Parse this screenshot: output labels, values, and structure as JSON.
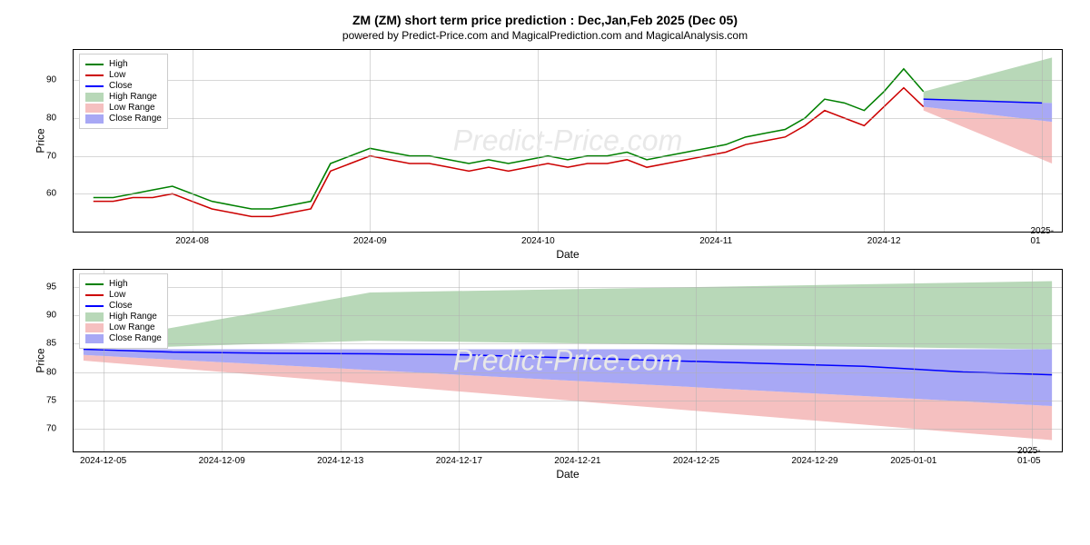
{
  "title": "ZM (ZM) short term price prediction : Dec,Jan,Feb 2025 (Dec 05)",
  "subtitle": "powered by Predict-Price.com and MagicalPrediction.com and MagicalAnalysis.com",
  "watermark": "Predict-Price.com",
  "chart1": {
    "type": "line_with_ranges",
    "ylabel": "Price",
    "xlabel": "Date",
    "ylim": [
      50,
      98
    ],
    "yticks": [
      60,
      70,
      80,
      90
    ],
    "xticks": [
      "2024-08",
      "2024-09",
      "2024-10",
      "2024-11",
      "2024-12",
      "2025-01"
    ],
    "xtick_positions": [
      0.12,
      0.3,
      0.47,
      0.65,
      0.82,
      0.98
    ],
    "grid_color": "#b0b0b0",
    "background_color": "#ffffff",
    "legend_items": [
      {
        "label": "High",
        "type": "line",
        "color": "#008000"
      },
      {
        "label": "Low",
        "type": "line",
        "color": "#cc0000"
      },
      {
        "label": "Close",
        "type": "line",
        "color": "#0000ff"
      },
      {
        "label": "High Range",
        "type": "patch",
        "color": "#b8d8b8"
      },
      {
        "label": "Low Range",
        "type": "patch",
        "color": "#f5c0c0"
      },
      {
        "label": "Close Range",
        "type": "patch",
        "color": "#a8a8f5"
      }
    ],
    "series_high": {
      "color": "#008000",
      "line_width": 1.5,
      "x": [
        0.02,
        0.04,
        0.06,
        0.08,
        0.1,
        0.12,
        0.14,
        0.16,
        0.18,
        0.2,
        0.22,
        0.24,
        0.26,
        0.28,
        0.3,
        0.32,
        0.34,
        0.36,
        0.38,
        0.4,
        0.42,
        0.44,
        0.46,
        0.48,
        0.5,
        0.52,
        0.54,
        0.56,
        0.58,
        0.6,
        0.62,
        0.64,
        0.66,
        0.68,
        0.7,
        0.72,
        0.74,
        0.76,
        0.78,
        0.8,
        0.82,
        0.84,
        0.86
      ],
      "y": [
        59,
        59,
        60,
        61,
        62,
        60,
        58,
        57,
        56,
        56,
        57,
        58,
        68,
        70,
        72,
        71,
        70,
        70,
        69,
        68,
        69,
        68,
        69,
        70,
        69,
        70,
        70,
        71,
        69,
        70,
        71,
        72,
        73,
        75,
        76,
        77,
        80,
        85,
        84,
        82,
        87,
        93,
        87
      ]
    },
    "series_low": {
      "color": "#cc0000",
      "line_width": 1.5,
      "x": [
        0.02,
        0.04,
        0.06,
        0.08,
        0.1,
        0.12,
        0.14,
        0.16,
        0.18,
        0.2,
        0.22,
        0.24,
        0.26,
        0.28,
        0.3,
        0.32,
        0.34,
        0.36,
        0.38,
        0.4,
        0.42,
        0.44,
        0.46,
        0.48,
        0.5,
        0.52,
        0.54,
        0.56,
        0.58,
        0.6,
        0.62,
        0.64,
        0.66,
        0.68,
        0.7,
        0.72,
        0.74,
        0.76,
        0.78,
        0.8,
        0.82,
        0.84,
        0.86
      ],
      "y": [
        58,
        58,
        59,
        59,
        60,
        58,
        56,
        55,
        54,
        54,
        55,
        56,
        66,
        68,
        70,
        69,
        68,
        68,
        67,
        66,
        67,
        66,
        67,
        68,
        67,
        68,
        68,
        69,
        67,
        68,
        69,
        70,
        71,
        73,
        74,
        75,
        78,
        82,
        80,
        78,
        83,
        88,
        83
      ]
    },
    "series_close": {
      "color": "#0000ff",
      "line_width": 1.5,
      "x": [
        0.86,
        0.98
      ],
      "y": [
        85,
        84
      ]
    },
    "range_high": {
      "color": "#b8d8b8",
      "x_start": 0.86,
      "x_end": 0.99,
      "top_start": 87,
      "top_end": 96,
      "bottom_start": 85,
      "bottom_end": 84
    },
    "range_close": {
      "color": "#a8a8f5",
      "x_start": 0.86,
      "x_end": 0.99,
      "top_start": 85,
      "top_end": 84,
      "bottom_start": 83,
      "bottom_end": 79
    },
    "range_low": {
      "color": "#f5c0c0",
      "x_start": 0.86,
      "x_end": 0.99,
      "top_start": 83,
      "top_end": 79,
      "bottom_start": 82,
      "bottom_end": 68
    }
  },
  "chart2": {
    "type": "line_with_ranges",
    "ylabel": "Price",
    "xlabel": "Date",
    "ylim": [
      66,
      98
    ],
    "yticks": [
      70,
      75,
      80,
      85,
      90,
      95
    ],
    "xticks": [
      "2024-12-05",
      "2024-12-09",
      "2024-12-13",
      "2024-12-17",
      "2024-12-21",
      "2024-12-25",
      "2024-12-29",
      "2025-01-01",
      "2025-01-05"
    ],
    "xtick_positions": [
      0.03,
      0.15,
      0.27,
      0.39,
      0.51,
      0.63,
      0.75,
      0.85,
      0.97
    ],
    "grid_color": "#b0b0b0",
    "background_color": "#ffffff",
    "legend_items": [
      {
        "label": "High",
        "type": "line",
        "color": "#008000"
      },
      {
        "label": "Low",
        "type": "line",
        "color": "#cc0000"
      },
      {
        "label": "Close",
        "type": "line",
        "color": "#0000ff"
      },
      {
        "label": "High Range",
        "type": "patch",
        "color": "#b8d8b8"
      },
      {
        "label": "Low Range",
        "type": "patch",
        "color": "#f5c0c0"
      },
      {
        "label": "Close Range",
        "type": "patch",
        "color": "#a8a8f5"
      }
    ],
    "series_close": {
      "color": "#0000ff",
      "line_width": 1.5,
      "x": [
        0.01,
        0.1,
        0.2,
        0.3,
        0.4,
        0.5,
        0.6,
        0.7,
        0.8,
        0.9,
        0.99
      ],
      "y": [
        84,
        83.5,
        83.3,
        83.2,
        83,
        82.5,
        82,
        81.5,
        81,
        80,
        79.5
      ]
    },
    "range_high": {
      "color": "#b8d8b8",
      "x_start": 0.01,
      "x_end": 0.99,
      "top_start": 85,
      "top_mid": 94,
      "top_end": 96,
      "bottom_start": 84,
      "bottom_mid": 85.5,
      "bottom_end": 84,
      "mid_x": 0.3
    },
    "range_close": {
      "color": "#a8a8f5",
      "x_start": 0.01,
      "x_end": 0.99,
      "top_start": 84,
      "top_end": 84,
      "bottom_start": 83,
      "bottom_end": 74
    },
    "range_low": {
      "color": "#f5c0c0",
      "x_start": 0.01,
      "x_end": 0.99,
      "top_start": 83,
      "top_end": 74,
      "bottom_start": 82,
      "bottom_end": 68
    }
  }
}
